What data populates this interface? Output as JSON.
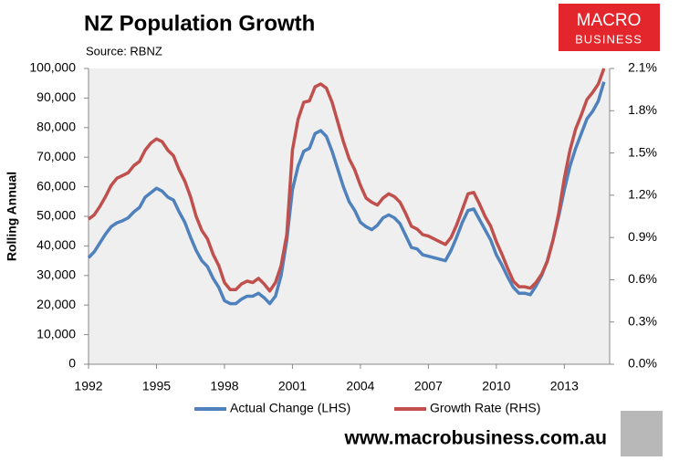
{
  "chart_data": {
    "type": "line",
    "title": "NZ Population Growth",
    "subtitle": "Source: RBNZ",
    "ylabel": "Rolling Annual",
    "annotations": [
      "MACRO",
      "BUSINESS",
      "www.macrobusiness.com.au"
    ],
    "xlim": [
      1992,
      2015
    ],
    "xticks": [
      1992,
      1995,
      1998,
      2001,
      2004,
      2007,
      2010,
      2013
    ],
    "ylim": [
      0,
      100000
    ],
    "yticks": [
      0,
      {
        "value": 10000,
        "label": "10,000"
      },
      {
        "value": 20000,
        "label": "20,000"
      },
      {
        "value": 30000,
        "label": "30,000"
      },
      {
        "value": 40000,
        "label": "40,000"
      },
      {
        "value": 50000,
        "label": "50,000"
      },
      {
        "value": 60000,
        "label": "60,000"
      },
      {
        "value": 70000,
        "label": "70,000"
      },
      {
        "value": 80000,
        "label": "80,000"
      },
      {
        "value": 90000,
        "label": "90,000"
      },
      {
        "value": 100000,
        "label": "100,000"
      }
    ],
    "y2lim": [
      0,
      2.1
    ],
    "y2ticks": [
      {
        "value": 0,
        "label": "0.0%"
      },
      {
        "value": 0.3,
        "label": "0.3%"
      },
      {
        "value": 0.6,
        "label": "0.6%"
      },
      {
        "value": 0.9,
        "label": "0.9%"
      },
      {
        "value": 1.2,
        "label": "1.2%"
      },
      {
        "value": 1.5,
        "label": "1.5%"
      },
      {
        "value": 1.8,
        "label": "1.8%"
      },
      {
        "value": 2.1,
        "label": "2.1%"
      }
    ],
    "grid": false,
    "x": [
      1992,
      1992.25,
      1992.5,
      1992.75,
      1993,
      1993.25,
      1993.5,
      1993.75,
      1994,
      1994.25,
      1994.5,
      1994.75,
      1995,
      1995.25,
      1995.5,
      1995.75,
      1996,
      1996.25,
      1996.5,
      1996.75,
      1997,
      1997.25,
      1997.5,
      1997.75,
      1998,
      1998.25,
      1998.5,
      1998.75,
      1999,
      1999.25,
      1999.5,
      1999.75,
      2000,
      2000.25,
      2000.5,
      2000.75,
      2001,
      2001.25,
      2001.5,
      2001.75,
      2002,
      2002.25,
      2002.5,
      2002.75,
      2003,
      2003.25,
      2003.5,
      2003.75,
      2004,
      2004.25,
      2004.5,
      2004.75,
      2005,
      2005.25,
      2005.5,
      2005.75,
      2006,
      2006.25,
      2006.5,
      2006.75,
      2007,
      2007.25,
      2007.5,
      2007.75,
      2008,
      2008.25,
      2008.5,
      2008.75,
      2009,
      2009.25,
      2009.5,
      2009.75,
      2010,
      2010.25,
      2010.5,
      2010.75,
      2011,
      2011.25,
      2011.5,
      2011.75,
      2012,
      2012.25,
      2012.5,
      2012.75,
      2013,
      2013.25,
      2013.5,
      2013.75,
      2014,
      2014.25,
      2014.5,
      2014.75
    ],
    "series": [
      {
        "name": "Actual Change (LHS)",
        "color": "#4f81bd",
        "values": [
          36000,
          38000,
          41000,
          44000,
          46500,
          47800,
          48500,
          49500,
          51500,
          53000,
          56500,
          58000,
          59500,
          58500,
          56500,
          55500,
          51500,
          48000,
          43000,
          38500,
          35000,
          33000,
          29000,
          26000,
          21500,
          20500,
          20500,
          22000,
          23000,
          23000,
          24000,
          22500,
          20500,
          23000,
          30000,
          42000,
          59000,
          67000,
          72000,
          73000,
          78000,
          79000,
          77000,
          72000,
          66000,
          60000,
          55000,
          52000,
          48000,
          46500,
          45500,
          47000,
          49500,
          50500,
          49500,
          47500,
          43500,
          39500,
          39000,
          37000,
          36500,
          36000,
          35500,
          35000,
          38500,
          43000,
          48000,
          52000,
          52500,
          49000,
          45500,
          42000,
          37000,
          33500,
          29500,
          26000,
          24000,
          24000,
          23500,
          26500,
          30000,
          35000,
          42000,
          50000,
          59000,
          67000,
          73000,
          78000,
          83000,
          85500,
          89000,
          95500
        ]
      },
      {
        "name": "Growth Rate (RHS)",
        "color": "#c0504d",
        "axis": "y2",
        "values": [
          1.03,
          1.06,
          1.12,
          1.19,
          1.27,
          1.32,
          1.34,
          1.36,
          1.41,
          1.44,
          1.52,
          1.57,
          1.6,
          1.58,
          1.52,
          1.48,
          1.38,
          1.3,
          1.19,
          1.05,
          0.95,
          0.89,
          0.78,
          0.7,
          0.58,
          0.53,
          0.53,
          0.57,
          0.59,
          0.58,
          0.61,
          0.57,
          0.52,
          0.58,
          0.7,
          0.92,
          1.52,
          1.74,
          1.86,
          1.87,
          1.97,
          1.99,
          1.96,
          1.86,
          1.72,
          1.58,
          1.46,
          1.38,
          1.27,
          1.18,
          1.15,
          1.13,
          1.18,
          1.21,
          1.19,
          1.15,
          1.07,
          0.98,
          0.96,
          0.92,
          0.91,
          0.89,
          0.87,
          0.85,
          0.9,
          0.99,
          1.1,
          1.21,
          1.22,
          1.14,
          1.05,
          0.98,
          0.87,
          0.78,
          0.68,
          0.59,
          0.55,
          0.55,
          0.54,
          0.58,
          0.64,
          0.73,
          0.88,
          1.07,
          1.32,
          1.52,
          1.67,
          1.77,
          1.88,
          1.93,
          1.99,
          2.1
        ]
      }
    ]
  }
}
